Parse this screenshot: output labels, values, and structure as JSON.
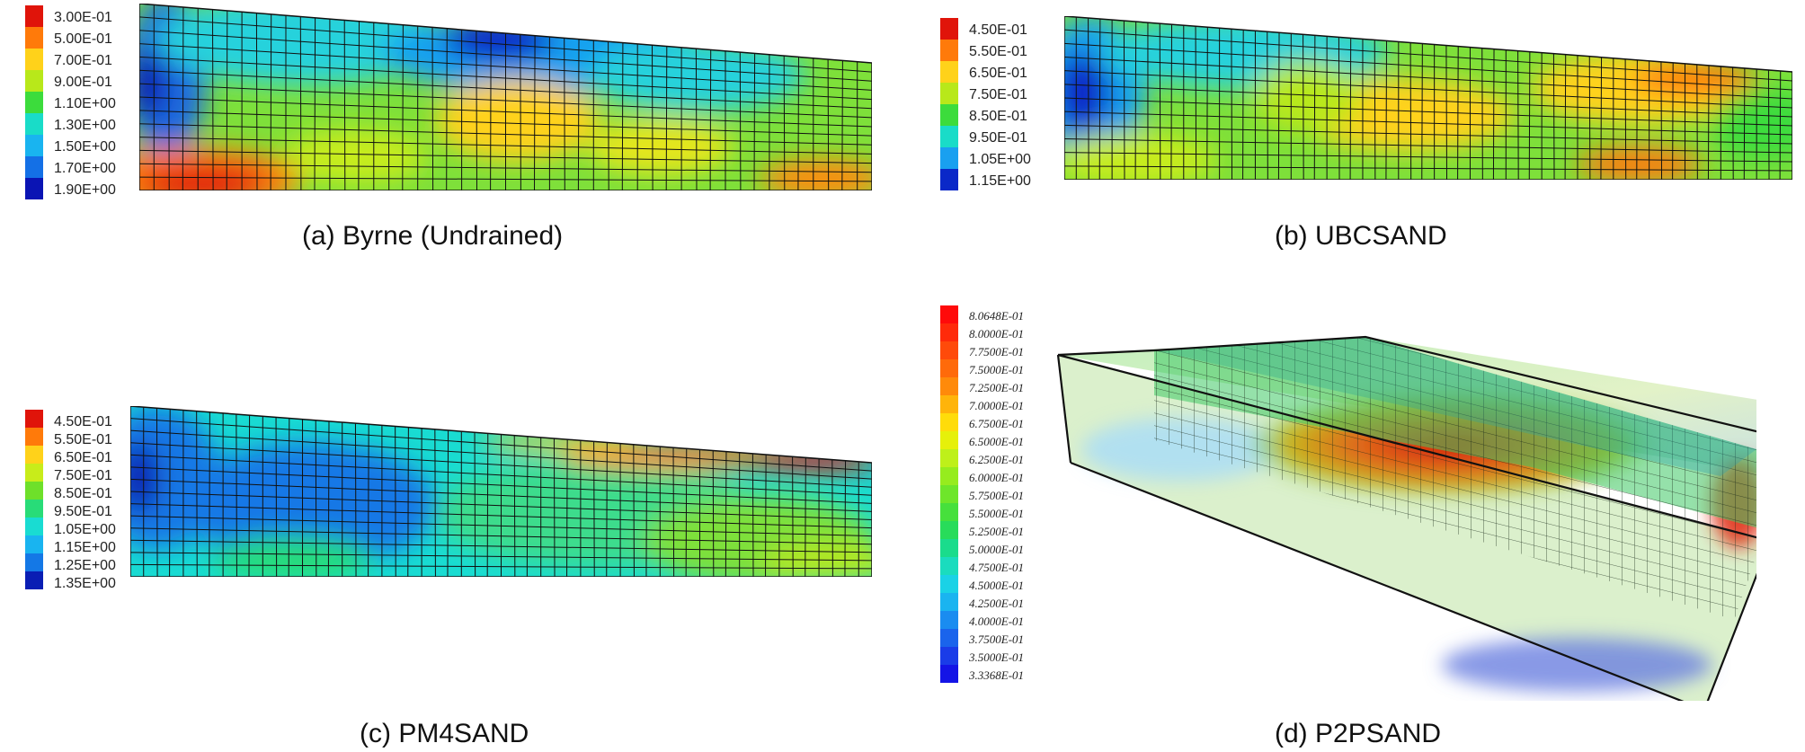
{
  "panels": [
    {
      "caption": "(a) Byrne (Undrained)",
      "legend": [
        "3.00E-01",
        "5.00E-01",
        "7.00E-01",
        "9.00E-01",
        "1.10E+00",
        "1.30E+00",
        "1.50E+00",
        "1.70E+00",
        "1.90E+00"
      ],
      "legend_colors": [
        "#e0140a",
        "#ff7a0a",
        "#ffd21a",
        "#b8e81a",
        "#3cdc3c",
        "#19dcc8",
        "#19b4f0",
        "#1470e6",
        "#0a14b4"
      ]
    },
    {
      "caption": "(b) UBCSAND",
      "legend": [
        "4.50E-01",
        "5.50E-01",
        "6.50E-01",
        "7.50E-01",
        "8.50E-01",
        "9.50E-01",
        "1.05E+00",
        "1.15E+00"
      ],
      "legend_colors": [
        "#e0140a",
        "#ff7a0a",
        "#ffd21a",
        "#b8e81a",
        "#3cdc3c",
        "#19dcc8",
        "#19a0f0",
        "#0a28c8"
      ]
    },
    {
      "caption": "(c) PM4SAND",
      "legend": [
        "4.50E-01",
        "5.50E-01",
        "6.50E-01",
        "7.50E-01",
        "8.50E-01",
        "9.50E-01",
        "1.05E+00",
        "1.15E+00",
        "1.25E+00",
        "1.35E+00"
      ],
      "legend_colors": [
        "#e0140a",
        "#ff7a0a",
        "#ffd21a",
        "#c8ec1a",
        "#6ee02a",
        "#28dc78",
        "#19dcd2",
        "#19b4f0",
        "#1478e6",
        "#0a1eb4"
      ]
    },
    {
      "caption": "(d) P2PSAND",
      "legend": [
        "8.0648E-01",
        "8.0000E-01",
        "7.7500E-01",
        "7.5000E-01",
        "7.2500E-01",
        "7.0000E-01",
        "6.7500E-01",
        "6.5000E-01",
        "6.2500E-01",
        "6.0000E-01",
        "5.7500E-01",
        "5.5000E-01",
        "5.2500E-01",
        "5.0000E-01",
        "4.7500E-01",
        "4.5000E-01",
        "4.2500E-01",
        "4.0000E-01",
        "3.7500E-01",
        "3.5000E-01",
        "3.3368E-01"
      ],
      "legend_colors": [
        "#ff0a0a",
        "#ff2a0a",
        "#ff4a0a",
        "#ff6a0a",
        "#ff8a0a",
        "#ffb40a",
        "#ffdc0a",
        "#e6f00a",
        "#bef01a",
        "#96ec1e",
        "#6ee62a",
        "#46e03c",
        "#28dc5a",
        "#1adc8c",
        "#1adcbe",
        "#1ad2e6",
        "#1ab4f0",
        "#1a8cf0",
        "#1a64ec",
        "#1a3ce8",
        "#1414e6"
      ]
    }
  ]
}
